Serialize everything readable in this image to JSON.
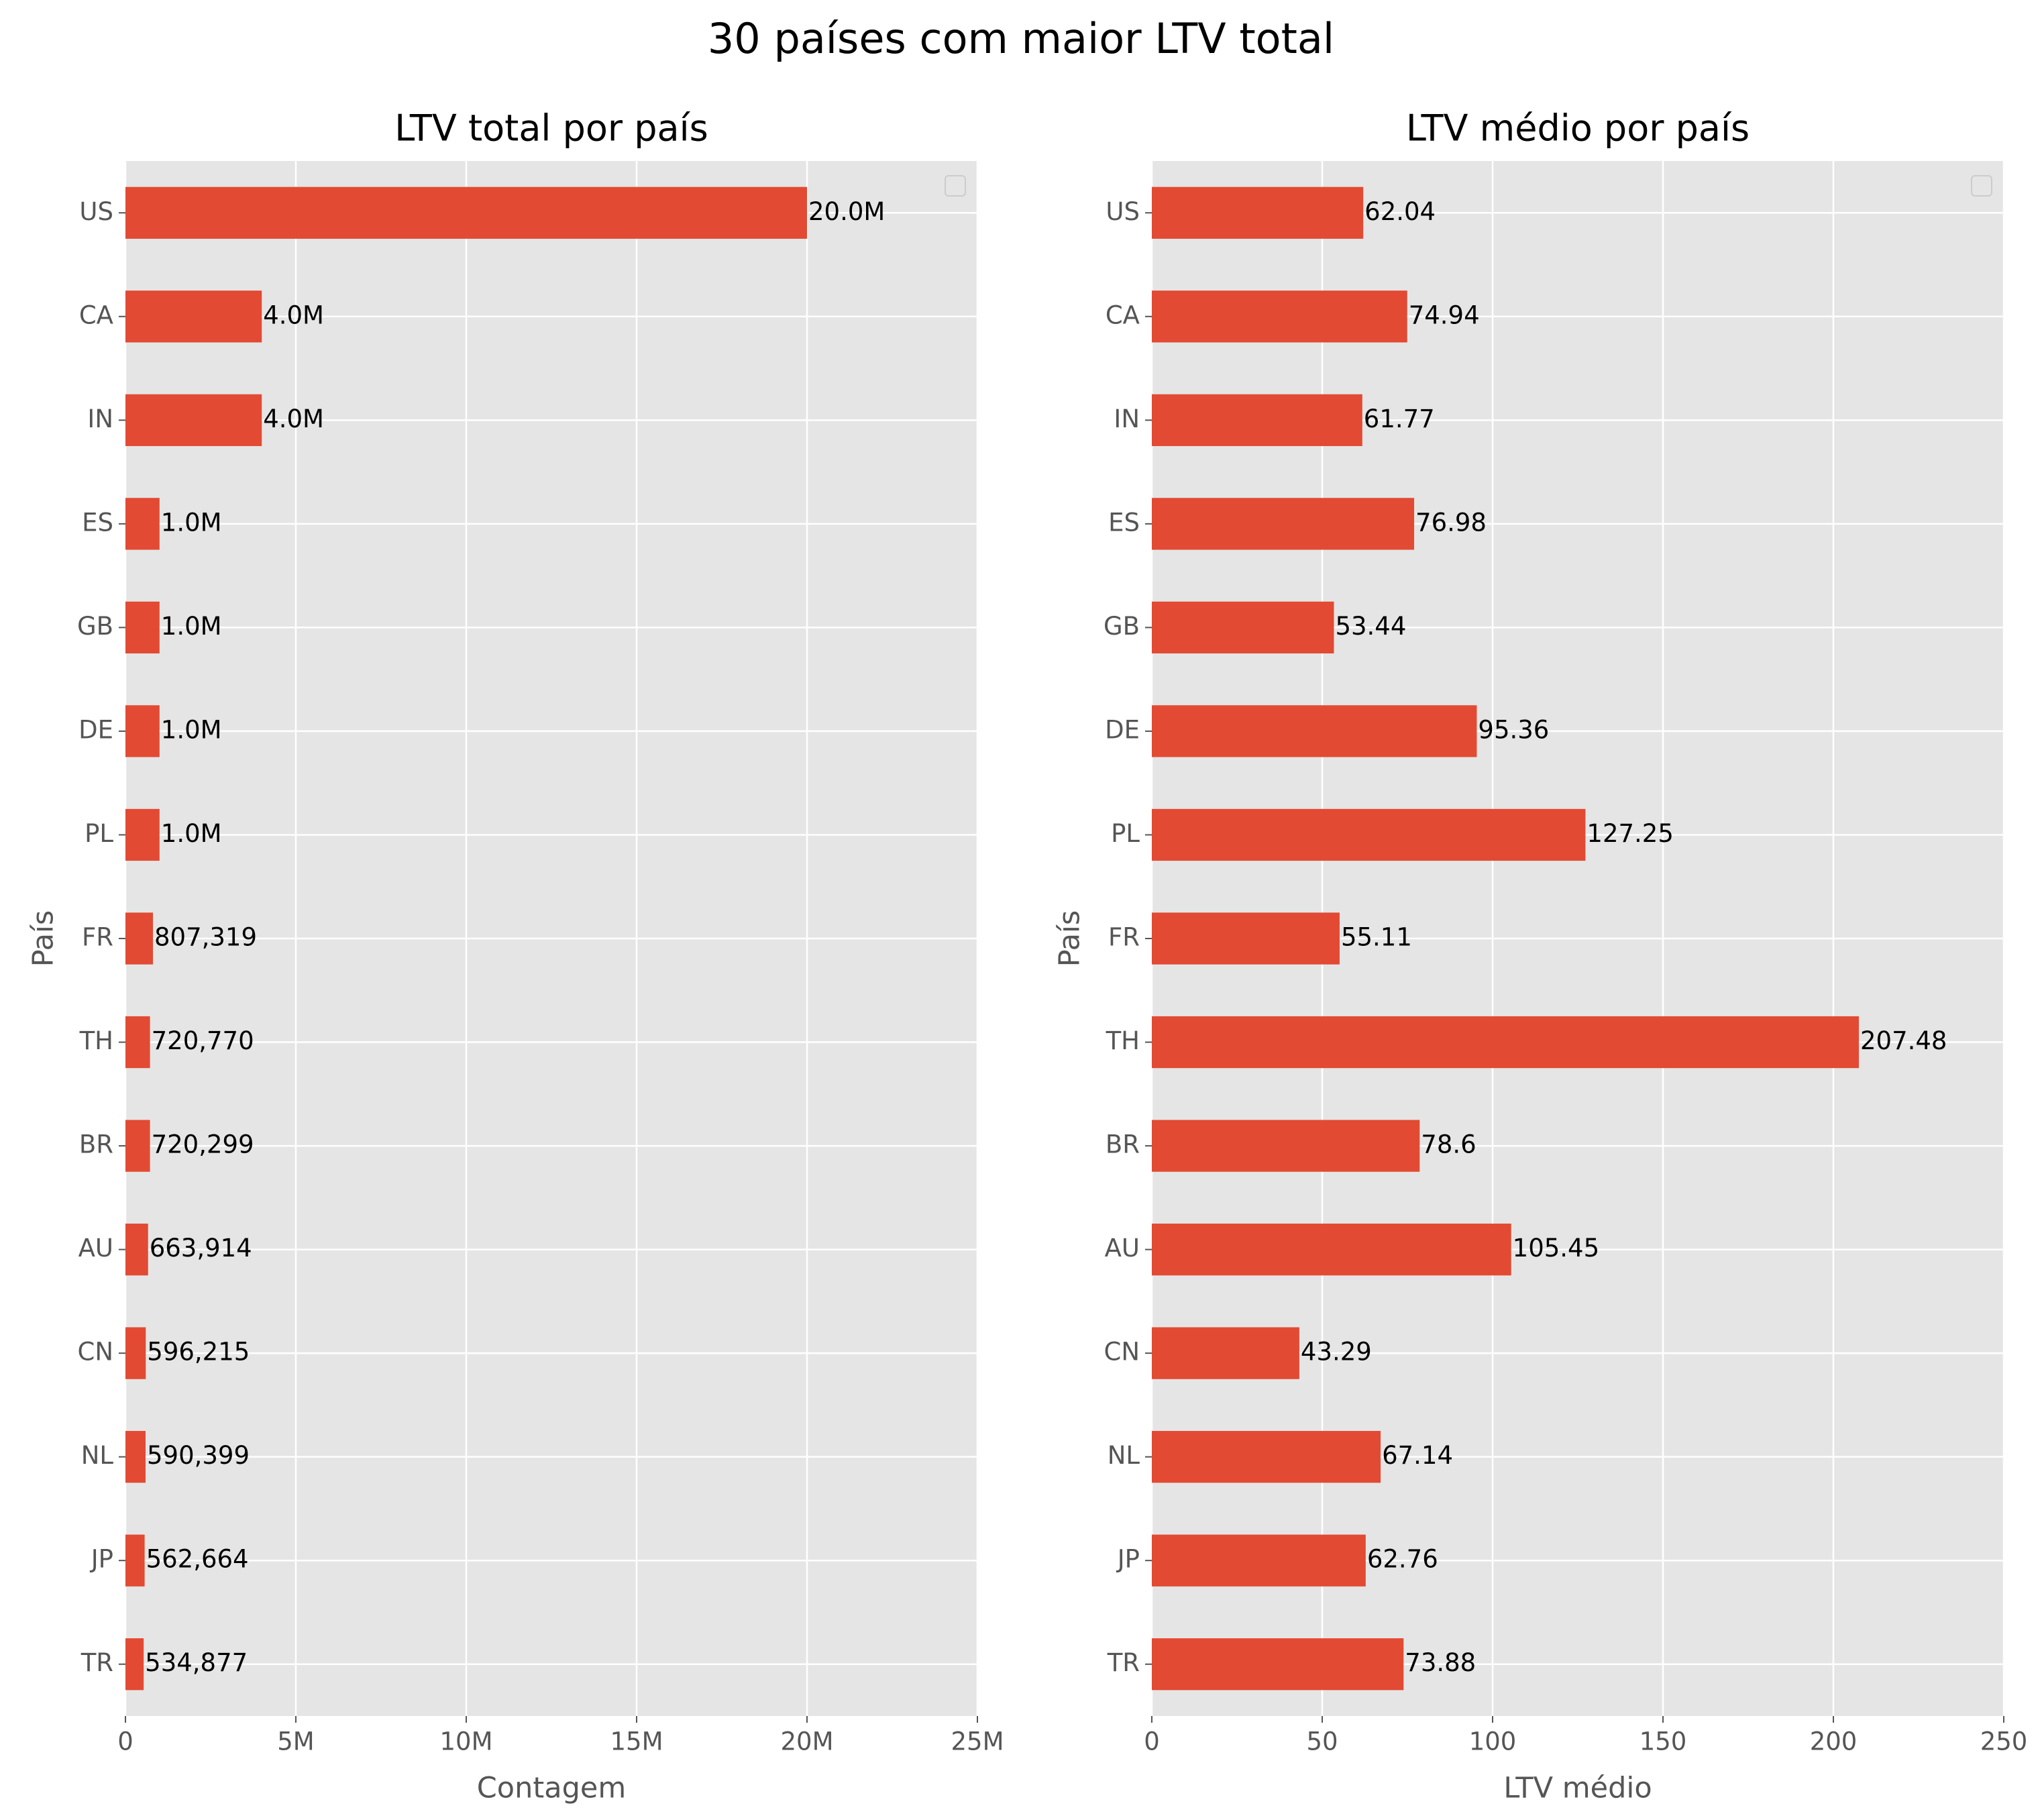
{
  "title": "30 países com maior LTV total",
  "chart_data": [
    {
      "type": "bar",
      "orientation": "horizontal",
      "title": "LTV total por país",
      "xlabel": "Contagem",
      "ylabel": "País",
      "categories": [
        "US",
        "CA",
        "IN",
        "ES",
        "GB",
        "DE",
        "PL",
        "FR",
        "TH",
        "BR",
        "AU",
        "CN",
        "NL",
        "JP",
        "TR"
      ],
      "values": [
        20000000,
        4000000,
        4000000,
        1000000,
        1000000,
        1000000,
        1000000,
        807319,
        720770,
        720299,
        663914,
        596215,
        590399,
        562664,
        534877
      ],
      "value_labels": [
        "20.0M",
        "4.0M",
        "4.0M",
        "1.0M",
        "1.0M",
        "1.0M",
        "1.0M",
        "807,319",
        "720,770",
        "720,299",
        "663,914",
        "596,215",
        "590,399",
        "562,664",
        "534,877"
      ],
      "color": "#e24a33",
      "xlim": [
        0,
        25000000
      ],
      "xticks": [
        0,
        {
          "value": 5000000,
          "label": "5M"
        },
        {
          "value": 10000000,
          "label": "10M"
        },
        {
          "value": 15000000,
          "label": "15M"
        },
        {
          "value": 20000000,
          "label": "20M"
        },
        {
          "value": 25000000,
          "label": "25M"
        }
      ],
      "grid": true
    },
    {
      "type": "bar",
      "orientation": "horizontal",
      "title": "LTV médio por país",
      "xlabel": "LTV médio",
      "ylabel": "País",
      "categories": [
        "US",
        "CA",
        "IN",
        "ES",
        "GB",
        "DE",
        "PL",
        "FR",
        "TH",
        "BR",
        "AU",
        "CN",
        "NL",
        "JP",
        "TR"
      ],
      "values": [
        62.04,
        74.94,
        61.77,
        76.98,
        53.44,
        95.36,
        127.25,
        55.11,
        207.48,
        78.6,
        105.45,
        43.29,
        67.14,
        62.76,
        73.88
      ],
      "color": "#e24a33",
      "xlim": [
        0,
        250
      ],
      "xticks": [
        0,
        50,
        100,
        150,
        200,
        250
      ],
      "grid": true
    }
  ]
}
